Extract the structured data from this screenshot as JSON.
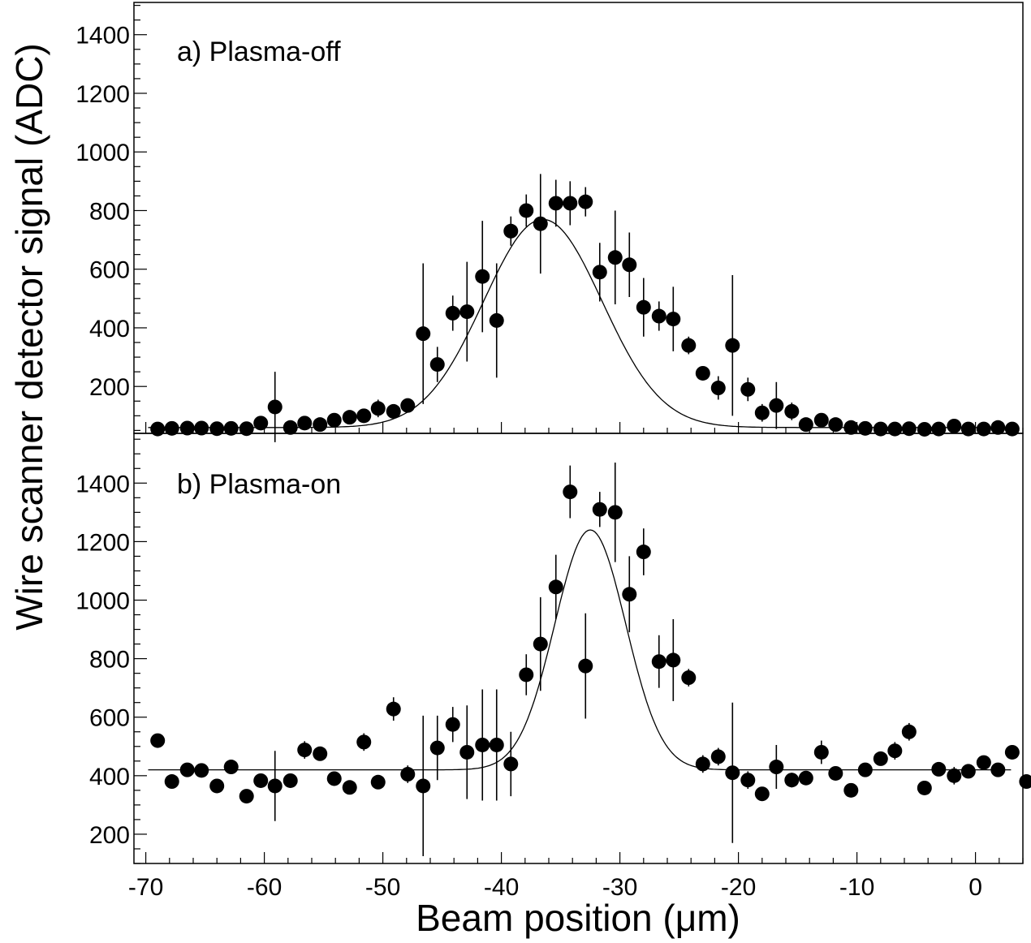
{
  "chart_data": {
    "type": "scatter",
    "xlabel": "Beam position (μm)",
    "ylabel": "Wire scanner detector signal (ADC)",
    "xlim": [
      -71,
      4
    ],
    "x_ticks": [
      -70,
      -60,
      -50,
      -40,
      -30,
      -20,
      -10,
      0
    ],
    "x_tick_labels": [
      "-70",
      "-60",
      "-50",
      "-40",
      "-30",
      "-20",
      "-10",
      "0"
    ],
    "panels": [
      {
        "label": "a) Plasma-off",
        "ylim": [
          40,
          1510
        ],
        "y_ticks": [
          200,
          400,
          600,
          800,
          1000,
          1200,
          1400
        ],
        "y_tick_labels": [
          "200",
          "400",
          "600",
          "800",
          "1000",
          "1200",
          "1400"
        ],
        "fit": {
          "model": "gaussian",
          "baseline": 60,
          "amplitude": 710,
          "mean": -36.5,
          "sigma": 5.0
        },
        "points": [
          {
            "x": -69.0,
            "y": 55,
            "err": 0
          },
          {
            "x": -67.8,
            "y": 57,
            "err": 0
          },
          {
            "x": -66.5,
            "y": 58,
            "err": 0
          },
          {
            "x": -65.3,
            "y": 58,
            "err": 0
          },
          {
            "x": -64.0,
            "y": 56,
            "err": 0
          },
          {
            "x": -62.8,
            "y": 57,
            "err": 0
          },
          {
            "x": -61.5,
            "y": 56,
            "err": 0
          },
          {
            "x": -60.3,
            "y": 75,
            "err": 0
          },
          {
            "x": -59.1,
            "y": 130,
            "err": 120
          },
          {
            "x": -57.8,
            "y": 60,
            "err": 0
          },
          {
            "x": -56.6,
            "y": 75,
            "err": 0
          },
          {
            "x": -55.3,
            "y": 70,
            "err": 0
          },
          {
            "x": -54.1,
            "y": 85,
            "err": 0
          },
          {
            "x": -52.8,
            "y": 95,
            "err": 0
          },
          {
            "x": -51.6,
            "y": 100,
            "err": 0
          },
          {
            "x": -50.4,
            "y": 125,
            "err": 30
          },
          {
            "x": -49.1,
            "y": 115,
            "err": 0
          },
          {
            "x": -47.9,
            "y": 135,
            "err": 0
          },
          {
            "x": -46.6,
            "y": 380,
            "err": 240
          },
          {
            "x": -45.4,
            "y": 275,
            "err": 60
          },
          {
            "x": -44.1,
            "y": 450,
            "err": 60
          },
          {
            "x": -42.9,
            "y": 455,
            "err": 170
          },
          {
            "x": -41.6,
            "y": 575,
            "err": 190
          },
          {
            "x": -40.4,
            "y": 425,
            "err": 195
          },
          {
            "x": -39.2,
            "y": 730,
            "err": 50
          },
          {
            "x": -37.9,
            "y": 800,
            "err": 55
          },
          {
            "x": -36.7,
            "y": 755,
            "err": 170
          },
          {
            "x": -35.4,
            "y": 825,
            "err": 80
          },
          {
            "x": -34.2,
            "y": 825,
            "err": 75
          },
          {
            "x": -32.9,
            "y": 830,
            "err": 50
          },
          {
            "x": -31.7,
            "y": 590,
            "err": 100
          },
          {
            "x": -30.4,
            "y": 640,
            "err": 160
          },
          {
            "x": -29.2,
            "y": 615,
            "err": 110
          },
          {
            "x": -28.0,
            "y": 470,
            "err": 100
          },
          {
            "x": -26.7,
            "y": 440,
            "err": 50
          },
          {
            "x": -25.5,
            "y": 430,
            "err": 110
          },
          {
            "x": -24.2,
            "y": 340,
            "err": 30
          },
          {
            "x": -23.0,
            "y": 245,
            "err": 20
          },
          {
            "x": -21.7,
            "y": 195,
            "err": 40
          },
          {
            "x": -20.5,
            "y": 340,
            "err": 240
          },
          {
            "x": -19.2,
            "y": 190,
            "err": 40
          },
          {
            "x": -18.0,
            "y": 110,
            "err": 30
          },
          {
            "x": -16.8,
            "y": 135,
            "err": 80
          },
          {
            "x": -15.5,
            "y": 115,
            "err": 30
          },
          {
            "x": -14.3,
            "y": 70,
            "err": 0
          },
          {
            "x": -13.0,
            "y": 85,
            "err": 20
          },
          {
            "x": -11.8,
            "y": 70,
            "err": 0
          },
          {
            "x": -10.5,
            "y": 60,
            "err": 0
          },
          {
            "x": -9.3,
            "y": 57,
            "err": 0
          },
          {
            "x": -8.0,
            "y": 55,
            "err": 0
          },
          {
            "x": -6.8,
            "y": 55,
            "err": 0
          },
          {
            "x": -5.6,
            "y": 56,
            "err": 0
          },
          {
            "x": -4.3,
            "y": 54,
            "err": 0
          },
          {
            "x": -3.1,
            "y": 55,
            "err": 0
          },
          {
            "x": -1.8,
            "y": 65,
            "err": 0
          },
          {
            "x": -0.6,
            "y": 55,
            "err": 0
          },
          {
            "x": 0.7,
            "y": 55,
            "err": 0
          },
          {
            "x": 1.9,
            "y": 60,
            "err": 0
          },
          {
            "x": 3.1,
            "y": 55,
            "err": 0
          }
        ]
      },
      {
        "label": "b) Plasma-on",
        "ylim": [
          100,
          1570
        ],
        "y_ticks": [
          200,
          400,
          600,
          800,
          1000,
          1200,
          1400
        ],
        "y_tick_labels": [
          "200",
          "400",
          "600",
          "800",
          "1000",
          "1200",
          "1400"
        ],
        "fit": {
          "model": "gaussian",
          "baseline": 420,
          "amplitude": 820,
          "mean": -32.5,
          "sigma": 3.0
        },
        "points": [
          {
            "x": -69.0,
            "y": 520,
            "err": 20
          },
          {
            "x": -67.8,
            "y": 380,
            "err": 0
          },
          {
            "x": -66.5,
            "y": 420,
            "err": 0
          },
          {
            "x": -65.3,
            "y": 418,
            "err": 0
          },
          {
            "x": -64.0,
            "y": 365,
            "err": 0
          },
          {
            "x": -62.8,
            "y": 430,
            "err": 0
          },
          {
            "x": -61.5,
            "y": 330,
            "err": 0
          },
          {
            "x": -60.3,
            "y": 383,
            "err": 0
          },
          {
            "x": -59.1,
            "y": 365,
            "err": 120
          },
          {
            "x": -57.8,
            "y": 383,
            "err": 0
          },
          {
            "x": -56.6,
            "y": 488,
            "err": 30
          },
          {
            "x": -55.3,
            "y": 475,
            "err": 20
          },
          {
            "x": -54.1,
            "y": 390,
            "err": 20
          },
          {
            "x": -52.8,
            "y": 360,
            "err": 0
          },
          {
            "x": -51.6,
            "y": 515,
            "err": 30
          },
          {
            "x": -50.4,
            "y": 378,
            "err": 20
          },
          {
            "x": -49.1,
            "y": 628,
            "err": 40
          },
          {
            "x": -47.9,
            "y": 405,
            "err": 30
          },
          {
            "x": -46.6,
            "y": 365,
            "err": 240
          },
          {
            "x": -45.4,
            "y": 495,
            "err": 110
          },
          {
            "x": -44.1,
            "y": 575,
            "err": 60
          },
          {
            "x": -42.9,
            "y": 480,
            "err": 160
          },
          {
            "x": -41.6,
            "y": 505,
            "err": 190
          },
          {
            "x": -40.4,
            "y": 505,
            "err": 190
          },
          {
            "x": -39.2,
            "y": 440,
            "err": 110
          },
          {
            "x": -37.9,
            "y": 745,
            "err": 70
          },
          {
            "x": -36.7,
            "y": 850,
            "err": 160
          },
          {
            "x": -35.4,
            "y": 1045,
            "err": 110
          },
          {
            "x": -34.2,
            "y": 1370,
            "err": 90
          },
          {
            "x": -32.9,
            "y": 775,
            "err": 180
          },
          {
            "x": -31.7,
            "y": 1310,
            "err": 60
          },
          {
            "x": -30.4,
            "y": 1300,
            "err": 170
          },
          {
            "x": -29.2,
            "y": 1020,
            "err": 130
          },
          {
            "x": -28.0,
            "y": 1165,
            "err": 80
          },
          {
            "x": -26.7,
            "y": 790,
            "err": 90
          },
          {
            "x": -25.5,
            "y": 795,
            "err": 140
          },
          {
            "x": -24.2,
            "y": 735,
            "err": 30
          },
          {
            "x": -23.0,
            "y": 440,
            "err": 30
          },
          {
            "x": -21.7,
            "y": 465,
            "err": 30
          },
          {
            "x": -20.5,
            "y": 410,
            "err": 240
          },
          {
            "x": -19.2,
            "y": 385,
            "err": 30
          },
          {
            "x": -18.0,
            "y": 338,
            "err": 20
          },
          {
            "x": -16.8,
            "y": 430,
            "err": 75
          },
          {
            "x": -15.5,
            "y": 385,
            "err": 25
          },
          {
            "x": -14.3,
            "y": 392,
            "err": 0
          },
          {
            "x": -13.0,
            "y": 480,
            "err": 40
          },
          {
            "x": -11.8,
            "y": 408,
            "err": 0
          },
          {
            "x": -10.5,
            "y": 350,
            "err": 0
          },
          {
            "x": -9.3,
            "y": 420,
            "err": 0
          },
          {
            "x": -8.0,
            "y": 458,
            "err": 20
          },
          {
            "x": -6.8,
            "y": 485,
            "err": 30
          },
          {
            "x": -5.6,
            "y": 550,
            "err": 30
          },
          {
            "x": -4.3,
            "y": 358,
            "err": 0
          },
          {
            "x": -3.1,
            "y": 422,
            "err": 0
          },
          {
            "x": -1.8,
            "y": 400,
            "err": 30
          },
          {
            "x": -0.6,
            "y": 415,
            "err": 0
          },
          {
            "x": 0.7,
            "y": 445,
            "err": 20
          },
          {
            "x": 1.9,
            "y": 420,
            "err": 0
          },
          {
            "x": 3.1,
            "y": 480,
            "err": 20
          },
          {
            "x": 4.3,
            "y": 380,
            "err": 0
          }
        ]
      }
    ]
  }
}
